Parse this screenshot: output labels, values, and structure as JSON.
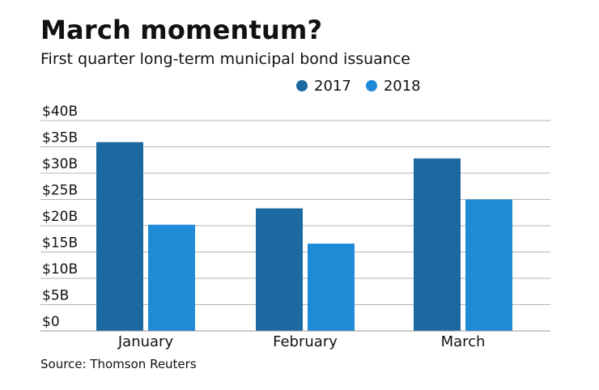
{
  "chart_data": {
    "type": "bar",
    "title": "March momentum?",
    "subtitle": "First quarter long-term municipal bond issuance",
    "source": "Source: Thomson Reuters",
    "categories": [
      "January",
      "February",
      "March"
    ],
    "series": [
      {
        "name": "2017",
        "color": "#1c69a2",
        "values": [
          35.9,
          23.3,
          32.8
        ]
      },
      {
        "name": "2018",
        "color": "#1f8ad6",
        "values": [
          20.2,
          16.6,
          25.0
        ]
      }
    ],
    "y_ticks": [
      0,
      5,
      10,
      15,
      20,
      25,
      30,
      35,
      40
    ],
    "y_tick_labels": [
      "$0",
      "$5B",
      "$10B",
      "$15B",
      "$20B",
      "$25B",
      "$30B",
      "$35B",
      "$40B"
    ],
    "ylim": [
      0,
      40
    ],
    "xlabel": "",
    "ylabel": "",
    "grid": true,
    "legend_position": "top"
  }
}
